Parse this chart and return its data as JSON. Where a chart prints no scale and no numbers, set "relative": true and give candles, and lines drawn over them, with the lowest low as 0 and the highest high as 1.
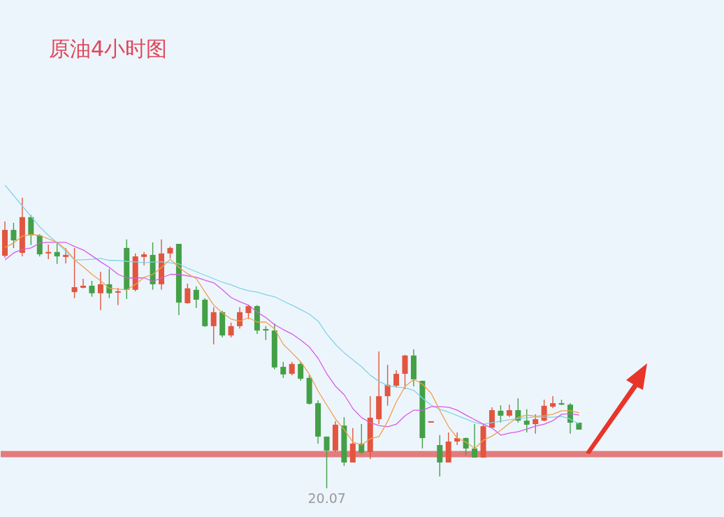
{
  "chart_data": {
    "type": "candlestick",
    "title": "原油4小时图",
    "relative": true,
    "tick_labels": "x",
    "categories": [
      null,
      null,
      null,
      null,
      null,
      null,
      null,
      null,
      null,
      null,
      null,
      null,
      null,
      null,
      null,
      null,
      null,
      null,
      null,
      null,
      null,
      null,
      null,
      null,
      null,
      null,
      null,
      null,
      null,
      null,
      null,
      null,
      null,
      null,
      null,
      null,
      null,
      "20.07",
      null,
      null,
      null,
      null,
      null,
      null,
      null,
      null,
      null,
      null,
      null,
      null,
      null,
      null,
      null,
      null,
      null,
      null,
      null,
      null,
      null,
      null,
      null,
      null,
      null,
      null,
      null,
      null,
      null,
      null,
      null,
      null,
      null,
      null,
      null,
      null,
      null,
      null,
      null,
      null,
      null,
      null,
      null,
      null,
      null
    ],
    "ohlc": [
      [
        0.8,
        0.918,
        0.793,
        0.889
      ],
      [
        0.889,
        0.913,
        0.827,
        0.853
      ],
      [
        0.81,
        1.0,
        0.798,
        0.933
      ],
      [
        0.933,
        0.94,
        0.837,
        0.87
      ],
      [
        0.87,
        0.875,
        0.798,
        0.805
      ],
      [
        0.808,
        0.839,
        0.788,
        0.813
      ],
      [
        0.813,
        0.844,
        0.772,
        0.798
      ],
      [
        0.796,
        0.827,
        0.774,
        0.803
      ],
      [
        0.675,
        0.827,
        0.654,
        0.692
      ],
      [
        0.69,
        0.721,
        0.688,
        0.697
      ],
      [
        0.697,
        0.714,
        0.659,
        0.671
      ],
      [
        0.671,
        0.745,
        0.613,
        0.702
      ],
      [
        0.702,
        0.755,
        0.654,
        0.671
      ],
      [
        0.673,
        0.69,
        0.63,
        0.678
      ],
      [
        0.827,
        0.856,
        0.651,
        0.683
      ],
      [
        0.683,
        0.808,
        0.678,
        0.798
      ],
      [
        0.796,
        0.813,
        0.767,
        0.805
      ],
      [
        0.803,
        0.846,
        0.683,
        0.702
      ],
      [
        0.702,
        0.856,
        0.683,
        0.808
      ],
      [
        0.808,
        0.832,
        0.791,
        0.827
      ],
      [
        0.841,
        0.841,
        0.596,
        0.639
      ],
      [
        0.637,
        0.704,
        0.635,
        0.688
      ],
      [
        0.683,
        0.695,
        0.62,
        0.649
      ],
      [
        0.649,
        0.654,
        0.555,
        0.558
      ],
      [
        0.558,
        0.623,
        0.495,
        0.606
      ],
      [
        0.606,
        0.611,
        0.519,
        0.526
      ],
      [
        0.526,
        0.57,
        0.519,
        0.558
      ],
      [
        0.558,
        0.623,
        0.55,
        0.606
      ],
      [
        0.603,
        0.63,
        0.582,
        0.627
      ],
      [
        0.627,
        0.63,
        0.531,
        0.543
      ],
      [
        0.548,
        0.558,
        0.51,
        0.543
      ],
      [
        0.543,
        0.567,
        0.409,
        0.416
      ],
      [
        0.418,
        0.435,
        0.38,
        0.392
      ],
      [
        0.394,
        0.435,
        0.389,
        0.428
      ],
      [
        0.428,
        0.435,
        0.37,
        0.377
      ],
      [
        0.38,
        0.389,
        0.288,
        0.291
      ],
      [
        0.293,
        0.303,
        0.154,
        0.178
      ],
      [
        0.178,
        0.178,
        0,
        0.13
      ],
      [
        0.13,
        0.231,
        0.125,
        0.219
      ],
      [
        0.216,
        0.245,
        0.077,
        0.089
      ],
      [
        0.089,
        0.207,
        0.089,
        0.154
      ],
      [
        0.154,
        0.221,
        0.118,
        0.123
      ],
      [
        0.125,
        0.317,
        0.101,
        0.243
      ],
      [
        0.238,
        0.471,
        0.221,
        0.317
      ],
      [
        0.317,
        0.425,
        0.284,
        0.356
      ],
      [
        0.353,
        0.406,
        0.346,
        0.394
      ],
      [
        0.394,
        0.459,
        0.341,
        0.457
      ],
      [
        0.457,
        0.478,
        0.351,
        0.375
      ],
      [
        0.37,
        0.37,
        0.137,
        0.173
      ],
      [
        0.226,
        0.231,
        0.226,
        0.231
      ],
      [
        0.149,
        0.183,
        0.041,
        0.089
      ],
      [
        0.089,
        0.192,
        0.089,
        0.161
      ],
      [
        0.161,
        0.192,
        0.149,
        0.173
      ],
      [
        0.173,
        0.175,
        0.113,
        0.137
      ],
      [
        0.137,
        0.221,
        0.106,
        0.106
      ],
      [
        0.106,
        0.221,
        0.106,
        0.214
      ],
      [
        0.209,
        0.279,
        0.207,
        0.269
      ],
      [
        0.267,
        0.286,
        0.226,
        0.25
      ],
      [
        0.25,
        0.288,
        0.245,
        0.269
      ],
      [
        0.269,
        0.31,
        0.226,
        0.233
      ],
      [
        0.233,
        0.272,
        0.192,
        0.219
      ],
      [
        0.221,
        0.255,
        0.188,
        0.238
      ],
      [
        0.233,
        0.305,
        0.231,
        0.284
      ],
      [
        0.281,
        0.317,
        0.276,
        0.293
      ],
      [
        0.293,
        0.305,
        0.286,
        0.288
      ],
      [
        0.288,
        0.293,
        0.188,
        0.226
      ],
      [
        0.226,
        0.226,
        0.202,
        0.202
      ],
      null,
      null,
      null,
      null,
      null,
      null,
      null,
      null,
      null,
      null,
      null,
      null,
      null,
      null,
      null,
      null
    ],
    "colors": [
      "#e2553f",
      "#43a047",
      "#e2553f",
      "#43a047",
      "#43a047",
      "#e2553f",
      "#43a047",
      "#e2553f",
      "#e2553f",
      "#e2553f",
      "#43a047",
      "#e2553f",
      "#43a047",
      "#e2553f",
      "#43a047",
      "#e2553f",
      "#e2553f",
      "#43a047",
      "#e2553f",
      "#e2553f",
      "#43a047",
      "#e2553f",
      "#43a047",
      "#43a047",
      "#e2553f",
      "#43a047",
      "#e2553f",
      "#e2553f",
      "#e2553f",
      "#43a047",
      "#43a047",
      "#43a047",
      "#43a047",
      "#e2553f",
      "#43a047",
      "#43a047",
      "#43a047",
      "#43a047",
      "#e2553f",
      "#43a047",
      "#e2553f",
      "#43a047",
      "#e2553f",
      "#e2553f",
      "#e2553f",
      "#e2553f",
      "#e2553f",
      "#43a047",
      "#43a047",
      "#e2553f",
      "#43a047",
      "#e2553f",
      "#e2553f",
      "#43a047",
      "#43a047",
      "#e2553f",
      "#e2553f",
      "#43a047",
      "#e2553f",
      "#43a047",
      "#43a047",
      "#e2553f",
      "#e2553f",
      "#e2553f",
      "#43a047",
      "#43a047",
      "#43a047",
      null,
      null,
      null,
      null,
      null,
      null,
      null,
      null,
      null,
      null,
      null,
      null,
      null,
      null,
      null,
      null
    ],
    "series": [
      {
        "type": "line",
        "color": "#80d4e6",
        "values": [
          1.043,
          1.007,
          0.971,
          0.935,
          0.899,
          0.87,
          0.844,
          0.815,
          0.786,
          0.786,
          0.788,
          0.791,
          0.784,
          0.784,
          0.781,
          0.779,
          0.776,
          0.779,
          0.779,
          0.776,
          0.772,
          0.757,
          0.745,
          0.733,
          0.721,
          0.709,
          0.7,
          0.688,
          0.68,
          0.675,
          0.666,
          0.659,
          0.644,
          0.63,
          0.615,
          0.599,
          0.575,
          0.531,
          0.495,
          0.466,
          0.442,
          0.418,
          0.389,
          0.368,
          0.353,
          0.349,
          0.346,
          0.337,
          0.31,
          0.286,
          0.272,
          0.262,
          0.25,
          0.238,
          0.226,
          0.221,
          0.226,
          0.231,
          0.236,
          0.24,
          0.243,
          0.245,
          0.245,
          0.245,
          0.248,
          0.238,
          0.221,
          null,
          null,
          null,
          null,
          null,
          null,
          null,
          null,
          null,
          null,
          null,
          null,
          null,
          null,
          null,
          null
        ]
      },
      {
        "type": "line",
        "color": "#d65ae6",
        "values": [
          0.786,
          0.81,
          0.822,
          0.827,
          0.844,
          0.846,
          0.846,
          0.846,
          0.832,
          0.82,
          0.8,
          0.779,
          0.76,
          0.736,
          0.724,
          0.724,
          0.724,
          0.712,
          0.724,
          0.736,
          0.736,
          0.731,
          0.726,
          0.716,
          0.707,
          0.683,
          0.656,
          0.642,
          0.63,
          0.606,
          0.587,
          0.563,
          0.546,
          0.531,
          0.51,
          0.486,
          0.447,
          0.394,
          0.351,
          0.322,
          0.274,
          0.243,
          0.226,
          0.216,
          0.212,
          0.221,
          0.25,
          0.269,
          0.269,
          0.281,
          0.281,
          0.279,
          0.269,
          0.252,
          0.236,
          0.221,
          0.207,
          0.183,
          0.19,
          0.195,
          0.204,
          0.214,
          0.221,
          0.233,
          0.255,
          0.257,
          0.252,
          null,
          null,
          null,
          null,
          null,
          null,
          null,
          null,
          null,
          null,
          null,
          null,
          null,
          null,
          null,
          null
        ]
      },
      {
        "type": "line",
        "color": "#f0a04b",
        "values": [
          0.829,
          0.844,
          0.868,
          0.873,
          0.87,
          0.858,
          0.846,
          0.822,
          0.786,
          0.762,
          0.736,
          0.714,
          0.688,
          0.685,
          0.683,
          0.702,
          0.726,
          0.736,
          0.76,
          0.788,
          0.76,
          0.738,
          0.721,
          0.675,
          0.63,
          0.603,
          0.582,
          0.575,
          0.587,
          0.572,
          0.572,
          0.548,
          0.495,
          0.466,
          0.435,
          0.392,
          0.334,
          0.286,
          0.238,
          0.202,
          0.159,
          0.149,
          0.171,
          0.178,
          0.231,
          0.298,
          0.351,
          0.375,
          0.358,
          0.327,
          0.267,
          0.212,
          0.173,
          0.159,
          0.137,
          0.166,
          0.18,
          0.2,
          0.224,
          0.245,
          0.252,
          0.248,
          0.25,
          0.255,
          0.267,
          0.267,
          0.26,
          null,
          null,
          null,
          null,
          null,
          null,
          null,
          null,
          null,
          null,
          null,
          null,
          null,
          null,
          null,
          null
        ]
      }
    ],
    "ref_lines": [
      {
        "axis": "y",
        "value": 0.118,
        "color": "#e06666"
      }
    ]
  }
}
